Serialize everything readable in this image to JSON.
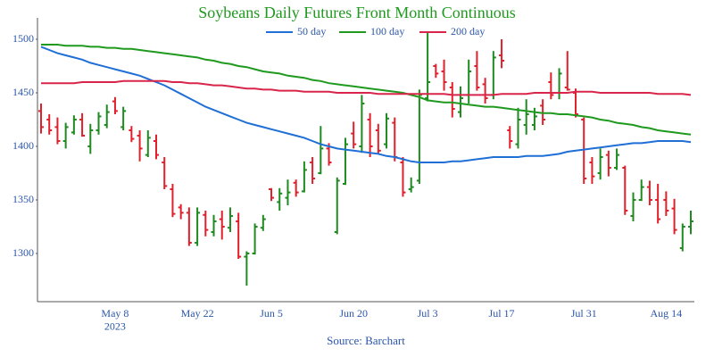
{
  "chart_data": {
    "type": "ohlc",
    "title": "Soybeans Daily Futures Front Month Continuous",
    "source": "Source: Barchart",
    "categories": [
      null,
      null,
      null,
      null,
      null,
      null,
      null,
      null,
      null,
      "May 8\n2023",
      null,
      null,
      null,
      null,
      null,
      null,
      null,
      null,
      null,
      "May 22",
      null,
      null,
      null,
      null,
      null,
      null,
      null,
      null,
      "Jun 5",
      null,
      null,
      null,
      null,
      null,
      null,
      null,
      null,
      null,
      "Jun 20",
      null,
      null,
      null,
      null,
      null,
      null,
      null,
      null,
      "Jul 3",
      null,
      null,
      null,
      null,
      null,
      null,
      null,
      null,
      "Jul 17",
      null,
      null,
      null,
      null,
      null,
      null,
      null,
      null,
      null,
      "Jul 31",
      null,
      null,
      null,
      null,
      null,
      null,
      null,
      null,
      null,
      "Aug 14",
      null,
      null,
      null
    ],
    "ohlc": {
      "up_color": "#1f8a1f",
      "down_color": "#e0202a",
      "open": [
        1433,
        1425,
        1418,
        1405,
        1413,
        1425,
        1400,
        1415,
        1420,
        1442,
        1418,
        1415,
        1410,
        1392,
        1405,
        1385,
        1360,
        1343,
        1338,
        1310,
        1336,
        1320,
        1332,
        1324,
        1330,
        1297,
        1300,
        1324,
        1360,
        1348,
        1352,
        1366,
        1358,
        1385,
        1375,
        1398,
        1320,
        1365,
        1412,
        1400,
        1425,
        1415,
        1402,
        1422,
        1385,
        1360,
        1368,
        1445,
        1475,
        1470,
        1455,
        1432,
        1448,
        1475,
        1458,
        1448,
        1485,
        1415,
        1402,
        1420,
        1420,
        1438,
        1460,
        1450,
        1455,
        1450,
        1425,
        1385,
        1375,
        1392,
        1380,
        1380,
        1335,
        1350,
        1362,
        1350,
        1350,
        1342,
        1305,
        1325
      ],
      "high": [
        1440,
        1430,
        1427,
        1422,
        1429,
        1431,
        1421,
        1432,
        1439,
        1446,
        1437,
        1419,
        1415,
        1415,
        1411,
        1390,
        1365,
        1346,
        1343,
        1343,
        1340,
        1336,
        1340,
        1343,
        1338,
        1302,
        1328,
        1336,
        1361,
        1361,
        1369,
        1369,
        1386,
        1390,
        1419,
        1403,
        1371,
        1408,
        1423,
        1448,
        1431,
        1421,
        1431,
        1427,
        1390,
        1371,
        1453,
        1506,
        1477,
        1481,
        1460,
        1456,
        1481,
        1489,
        1464,
        1489,
        1500,
        1419,
        1436,
        1444,
        1436,
        1444,
        1469,
        1473,
        1489,
        1454,
        1427,
        1390,
        1398,
        1396,
        1398,
        1382,
        1357,
        1369,
        1368,
        1365,
        1358,
        1351,
        1328,
        1340
      ],
      "low": [
        1412,
        1411,
        1402,
        1398,
        1411,
        1409,
        1393,
        1411,
        1417,
        1430,
        1415,
        1404,
        1386,
        1390,
        1388,
        1360,
        1334,
        1332,
        1307,
        1307,
        1316,
        1316,
        1313,
        1320,
        1295,
        1270,
        1299,
        1321,
        1349,
        1340,
        1345,
        1353,
        1357,
        1365,
        1374,
        1382,
        1318,
        1364,
        1398,
        1394,
        1390,
        1393,
        1398,
        1386,
        1353,
        1357,
        1365,
        1442,
        1464,
        1452,
        1427,
        1427,
        1440,
        1452,
        1440,
        1444,
        1473,
        1398,
        1398,
        1411,
        1415,
        1420,
        1444,
        1444,
        1452,
        1427,
        1365,
        1365,
        1369,
        1372,
        1378,
        1336,
        1330,
        1349,
        1345,
        1328,
        1335,
        1318,
        1302,
        1318
      ],
      "close": [
        1418,
        1415,
        1405,
        1418,
        1425,
        1410,
        1415,
        1428,
        1432,
        1433,
        1433,
        1407,
        1398,
        1408,
        1392,
        1363,
        1337,
        1338,
        1310,
        1338,
        1322,
        1330,
        1325,
        1335,
        1297,
        1300,
        1325,
        1332,
        1352,
        1356,
        1357,
        1357,
        1378,
        1370,
        1398,
        1385,
        1368,
        1402,
        1402,
        1440,
        1400,
        1396,
        1426,
        1390,
        1357,
        1362,
        1448,
        1460,
        1468,
        1460,
        1435,
        1445,
        1470,
        1455,
        1445,
        1483,
        1480,
        1405,
        1425,
        1430,
        1428,
        1425,
        1448,
        1468,
        1453,
        1430,
        1370,
        1372,
        1390,
        1380,
        1392,
        1340,
        1350,
        1362,
        1350,
        1332,
        1340,
        1322,
        1325,
        1330
      ]
    },
    "series": [
      {
        "name": "50 day",
        "color": "#1f6fd6",
        "values": [
          1493,
          1490,
          1487,
          1485,
          1483,
          1481,
          1478,
          1476,
          1474,
          1472,
          1470,
          1468,
          1466,
          1463,
          1460,
          1457,
          1453,
          1449,
          1445,
          1441,
          1437,
          1434,
          1431,
          1428,
          1425,
          1422,
          1420,
          1418,
          1416,
          1414,
          1412,
          1410,
          1408,
          1405,
          1402,
          1400,
          1398,
          1397,
          1396,
          1395,
          1394,
          1393,
          1391,
          1390,
          1388,
          1386,
          1385,
          1385,
          1385,
          1385,
          1386,
          1386,
          1387,
          1388,
          1389,
          1390,
          1390,
          1390,
          1390,
          1391,
          1391,
          1391,
          1392,
          1393,
          1395,
          1396,
          1397,
          1398,
          1399,
          1400,
          1401,
          1402,
          1403,
          1403,
          1404,
          1405,
          1405,
          1405,
          1405,
          1404
        ]
      },
      {
        "name": "100 day",
        "color": "#1f9a1f",
        "values": [
          1495,
          1495,
          1495,
          1494,
          1494,
          1494,
          1493,
          1493,
          1492,
          1492,
          1491,
          1491,
          1490,
          1489,
          1488,
          1487,
          1486,
          1485,
          1484,
          1483,
          1481,
          1480,
          1478,
          1477,
          1475,
          1474,
          1472,
          1470,
          1469,
          1468,
          1466,
          1465,
          1464,
          1462,
          1461,
          1459,
          1458,
          1457,
          1456,
          1455,
          1454,
          1453,
          1452,
          1451,
          1450,
          1448,
          1446,
          1443,
          1442,
          1441,
          1441,
          1440,
          1439,
          1438,
          1437,
          1437,
          1436,
          1435,
          1434,
          1433,
          1432,
          1431,
          1431,
          1430,
          1430,
          1429,
          1428,
          1427,
          1425,
          1424,
          1422,
          1421,
          1420,
          1418,
          1417,
          1415,
          1414,
          1413,
          1412,
          1411
        ]
      },
      {
        "name": "200 day",
        "color": "#d9254a",
        "values": [
          1459,
          1459,
          1459,
          1459,
          1459,
          1460,
          1460,
          1460,
          1460,
          1460,
          1461,
          1461,
          1461,
          1461,
          1461,
          1461,
          1460,
          1460,
          1459,
          1459,
          1458,
          1457,
          1457,
          1456,
          1455,
          1454,
          1454,
          1453,
          1453,
          1452,
          1452,
          1452,
          1451,
          1451,
          1451,
          1451,
          1450,
          1450,
          1450,
          1450,
          1450,
          1449,
          1449,
          1449,
          1449,
          1449,
          1449,
          1449,
          1449,
          1449,
          1448,
          1448,
          1448,
          1448,
          1448,
          1448,
          1449,
          1449,
          1449,
          1449,
          1450,
          1450,
          1450,
          1450,
          1450,
          1451,
          1451,
          1451,
          1450,
          1450,
          1450,
          1450,
          1450,
          1450,
          1450,
          1449,
          1449,
          1449,
          1449,
          1448
        ]
      }
    ],
    "ylim": [
      1255,
      1520
    ],
    "yticks": [
      1300,
      1350,
      1400,
      1450,
      1500
    ],
    "legend": "top",
    "grid": false
  }
}
